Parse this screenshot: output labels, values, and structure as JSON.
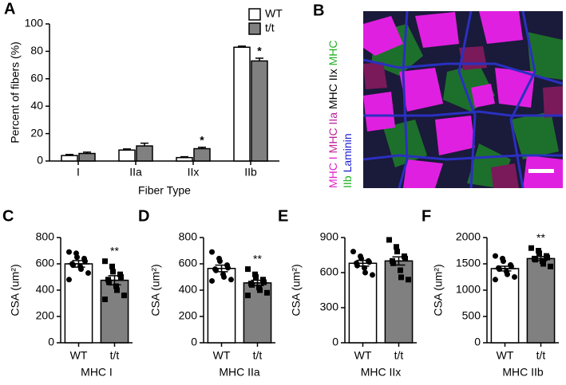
{
  "chart_data": [
    {
      "panel": "A",
      "type": "grouped-bar",
      "ylabel": "Percent of fibers (%)",
      "xlabel": "Fiber Type",
      "categories": [
        "I",
        "IIa",
        "IIx",
        "IIb"
      ],
      "series": [
        {
          "name": "WT",
          "color": "#ffffff",
          "values": [
            4,
            8,
            2.5,
            83
          ],
          "errors": [
            0.8,
            0.8,
            0.6,
            0.8
          ],
          "significance": [
            null,
            null,
            null,
            null
          ]
        },
        {
          "name": "t/t",
          "color": "#808080",
          "values": [
            5.5,
            11,
            9,
            73
          ],
          "errors": [
            1,
            2,
            1,
            2
          ],
          "significance": [
            null,
            null,
            "*",
            "*"
          ]
        }
      ],
      "ylim": [
        0,
        100
      ],
      "yticks": [
        0,
        20,
        40,
        60,
        80,
        100
      ],
      "legend": "top-right"
    },
    {
      "panel": "C",
      "type": "dot-bar",
      "ylabel": "CSA (um²)",
      "xlabel": "MHC I",
      "categories": [
        "WT",
        "t/t"
      ],
      "colors": [
        "#ffffff",
        "#808080"
      ],
      "markers": [
        "circle",
        "square"
      ],
      "values": [
        600,
        475
      ],
      "errors": [
        25,
        35
      ],
      "significance": [
        null,
        "**"
      ],
      "points": [
        [
          690,
          680,
          650,
          640,
          620,
          600,
          590,
          580,
          560,
          530,
          480
        ],
        [
          620,
          580,
          540,
          520,
          500,
          480,
          460,
          430,
          400,
          360,
          330
        ]
      ],
      "ylim": [
        0,
        800
      ],
      "yticks": [
        0,
        200,
        400,
        600,
        800
      ]
    },
    {
      "panel": "D",
      "type": "dot-bar",
      "ylabel": "CSA (um²)",
      "xlabel": "MHC IIa",
      "categories": [
        "WT",
        "t/t"
      ],
      "colors": [
        "#ffffff",
        "#808080"
      ],
      "markers": [
        "circle",
        "square"
      ],
      "values": [
        565,
        455
      ],
      "errors": [
        25,
        20
      ],
      "significance": [
        null,
        "**"
      ],
      "points": [
        [
          690,
          640,
          620,
          590,
          570,
          560,
          550,
          520,
          500,
          480,
          470
        ],
        [
          560,
          520,
          500,
          480,
          460,
          450,
          440,
          420,
          400,
          380,
          360
        ]
      ],
      "ylim": [
        0,
        800
      ],
      "yticks": [
        0,
        200,
        400,
        600,
        800
      ]
    },
    {
      "panel": "E",
      "type": "dot-bar",
      "ylabel": "CSA (um²)",
      "xlabel": "MHC IIx",
      "categories": [
        "WT",
        "t/t"
      ],
      "colors": [
        "#ffffff",
        "#808080"
      ],
      "markers": [
        "circle",
        "square"
      ],
      "values": [
        680,
        700
      ],
      "errors": [
        25,
        35
      ],
      "significance": [
        null,
        null
      ],
      "points": [
        [
          780,
          740,
          720,
          700,
          690,
          680,
          660,
          640,
          600,
          580
        ],
        [
          880,
          820,
          780,
          740,
          720,
          700,
          680,
          620,
          560,
          540
        ]
      ],
      "ylim": [
        0,
        900
      ],
      "yticks": [
        0,
        300,
        600,
        900
      ]
    },
    {
      "panel": "F",
      "type": "dot-bar",
      "ylabel": "CSA (um²)",
      "xlabel": "MHC IIb",
      "categories": [
        "WT",
        "t/t"
      ],
      "colors": [
        "#ffffff",
        "#808080"
      ],
      "markers": [
        "circle",
        "square"
      ],
      "values": [
        1410,
        1600
      ],
      "errors": [
        45,
        40
      ],
      "significance": [
        null,
        "**"
      ],
      "points": [
        [
          1650,
          1600,
          1550,
          1480,
          1450,
          1420,
          1400,
          1350,
          1300,
          1250,
          1200
        ],
        [
          1800,
          1750,
          1700,
          1650,
          1620,
          1600,
          1580,
          1550,
          1500,
          1450
        ]
      ],
      "ylim": [
        0,
        2000
      ],
      "yticks": [
        0,
        500,
        1000,
        1500,
        2000
      ]
    }
  ],
  "image_panel": {
    "label": "B",
    "line1": [
      {
        "text": "MHC I",
        "color": "#e020c8"
      },
      {
        "text": "MHC IIa",
        "color": "#c0209a"
      },
      {
        "text": "MHC IIx",
        "color": "#000000"
      },
      {
        "text": "MHC",
        "color": "#20b020"
      }
    ],
    "line2": [
      {
        "text": "IIb",
        "color": "#20b020"
      },
      {
        "text": "Laminin",
        "color": "#2020d0"
      }
    ]
  }
}
